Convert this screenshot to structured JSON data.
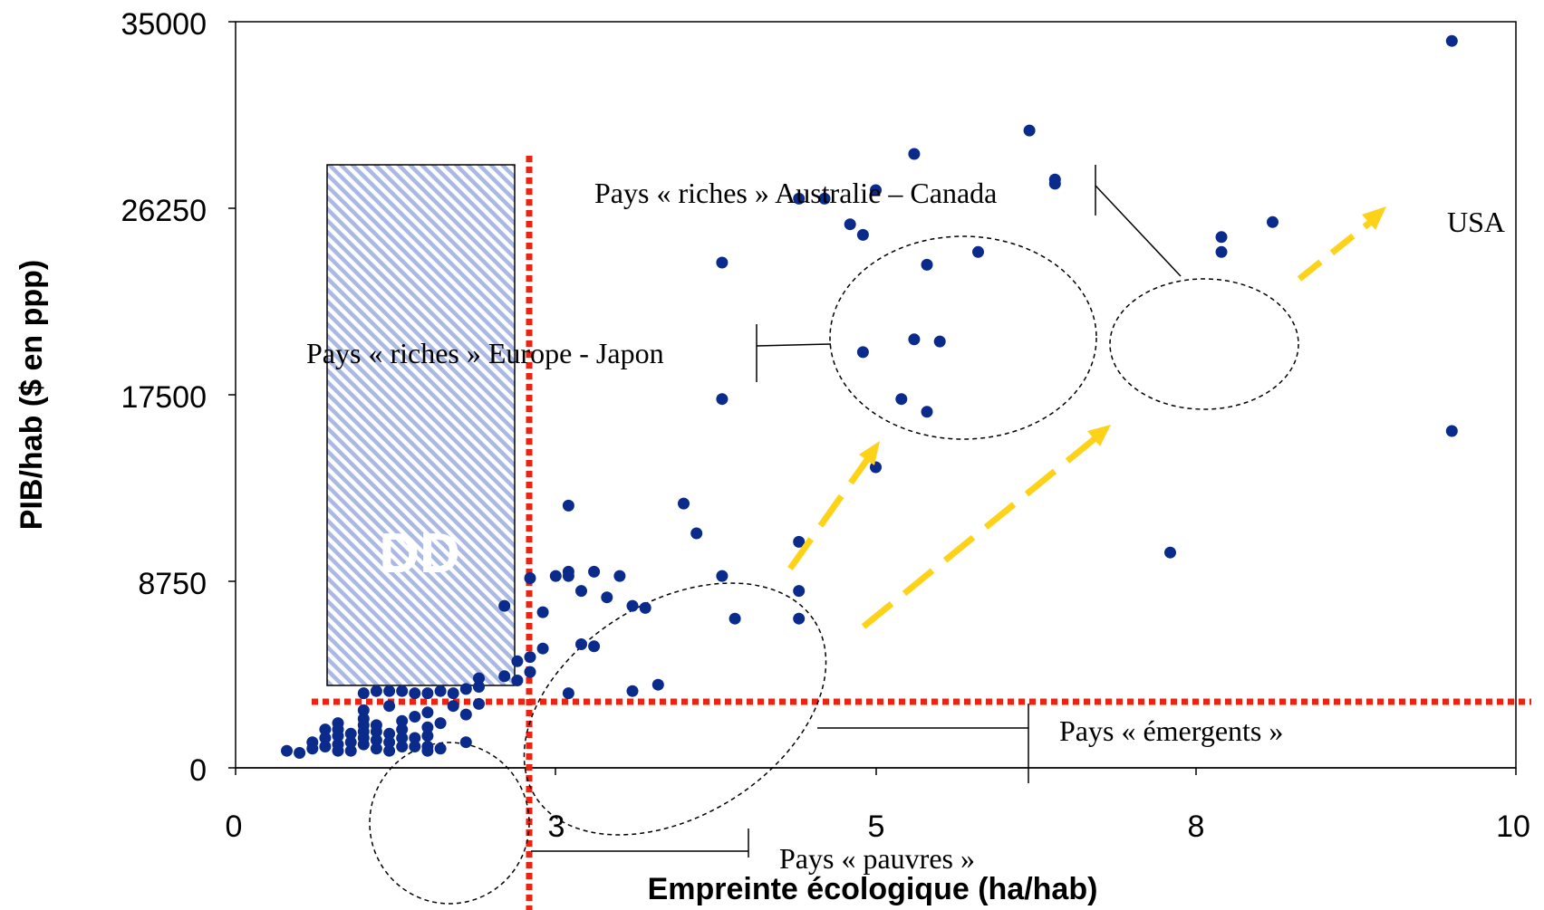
{
  "chart_data": {
    "type": "scatter",
    "title": "",
    "xlabel": "Empreinte écologique (ha/hab)",
    "ylabel": "PIB/hab ($ en ppp)",
    "xlim": [
      0,
      10
    ],
    "ylim": [
      0,
      35000
    ],
    "x_ticks": [
      {
        "value": 0,
        "label": "0"
      },
      {
        "value": 2.5,
        "label": "3"
      },
      {
        "value": 5,
        "label": "5"
      },
      {
        "value": 7.5,
        "label": "8"
      },
      {
        "value": 10,
        "label": "10"
      }
    ],
    "y_ticks": [
      {
        "value": 0,
        "label": "0"
      },
      {
        "value": 8750,
        "label": "8750"
      },
      {
        "value": 17500,
        "label": "17500"
      },
      {
        "value": 26250,
        "label": "26250"
      },
      {
        "value": 35000,
        "label": "35000"
      }
    ],
    "grid": false,
    "legend": "none",
    "marker_color": "#0a2a8c",
    "points": [
      {
        "x": 9.5,
        "y": 34100
      },
      {
        "x": 9.5,
        "y": 15800
      },
      {
        "x": 6.2,
        "y": 29900
      },
      {
        "x": 6.4,
        "y": 27600
      },
      {
        "x": 6.4,
        "y": 27400
      },
      {
        "x": 5.3,
        "y": 28800
      },
      {
        "x": 5.0,
        "y": 27100
      },
      {
        "x": 4.4,
        "y": 26700
      },
      {
        "x": 4.6,
        "y": 26700
      },
      {
        "x": 4.8,
        "y": 25500
      },
      {
        "x": 4.9,
        "y": 25000
      },
      {
        "x": 7.7,
        "y": 24900
      },
      {
        "x": 7.7,
        "y": 24200
      },
      {
        "x": 8.1,
        "y": 25600
      },
      {
        "x": 5.8,
        "y": 24200
      },
      {
        "x": 5.4,
        "y": 23600
      },
      {
        "x": 3.8,
        "y": 23700
      },
      {
        "x": 5.3,
        "y": 20100
      },
      {
        "x": 5.5,
        "y": 20000
      },
      {
        "x": 4.9,
        "y": 19500
      },
      {
        "x": 3.8,
        "y": 17300
      },
      {
        "x": 5.2,
        "y": 17300
      },
      {
        "x": 5.4,
        "y": 16700
      },
      {
        "x": 5.0,
        "y": 14100
      },
      {
        "x": 7.3,
        "y": 10100
      },
      {
        "x": 4.4,
        "y": 10600
      },
      {
        "x": 3.5,
        "y": 12400
      },
      {
        "x": 3.6,
        "y": 11000
      },
      {
        "x": 2.6,
        "y": 12300
      },
      {
        "x": 2.6,
        "y": 9200
      },
      {
        "x": 2.6,
        "y": 9000
      },
      {
        "x": 2.5,
        "y": 9000
      },
      {
        "x": 2.3,
        "y": 8900
      },
      {
        "x": 2.8,
        "y": 9200
      },
      {
        "x": 3.0,
        "y": 9000
      },
      {
        "x": 3.8,
        "y": 9000
      },
      {
        "x": 2.7,
        "y": 8300
      },
      {
        "x": 2.9,
        "y": 8000
      },
      {
        "x": 3.1,
        "y": 7600
      },
      {
        "x": 3.2,
        "y": 7500
      },
      {
        "x": 4.4,
        "y": 8300
      },
      {
        "x": 2.4,
        "y": 7300
      },
      {
        "x": 2.1,
        "y": 7600
      },
      {
        "x": 3.9,
        "y": 7000
      },
      {
        "x": 4.4,
        "y": 7000
      },
      {
        "x": 2.7,
        "y": 5800
      },
      {
        "x": 2.8,
        "y": 5700
      },
      {
        "x": 2.4,
        "y": 5600
      },
      {
        "x": 2.2,
        "y": 5000
      },
      {
        "x": 2.3,
        "y": 5200
      },
      {
        "x": 2.3,
        "y": 4500
      },
      {
        "x": 2.2,
        "y": 4100
      },
      {
        "x": 2.1,
        "y": 4300
      },
      {
        "x": 3.1,
        "y": 3600
      },
      {
        "x": 3.3,
        "y": 3900
      },
      {
        "x": 2.6,
        "y": 3500
      },
      {
        "x": 1.9,
        "y": 4200
      },
      {
        "x": 1.9,
        "y": 3800
      },
      {
        "x": 1.8,
        "y": 3700
      },
      {
        "x": 1.7,
        "y": 3500
      },
      {
        "x": 1.6,
        "y": 3600
      },
      {
        "x": 1.5,
        "y": 3500
      },
      {
        "x": 1.4,
        "y": 3500
      },
      {
        "x": 1.3,
        "y": 3600
      },
      {
        "x": 1.2,
        "y": 3600
      },
      {
        "x": 1.1,
        "y": 3600
      },
      {
        "x": 1.0,
        "y": 3500
      },
      {
        "x": 1.9,
        "y": 3000
      },
      {
        "x": 1.8,
        "y": 2500
      },
      {
        "x": 1.7,
        "y": 2900
      },
      {
        "x": 1.5,
        "y": 2600
      },
      {
        "x": 1.2,
        "y": 2900
      },
      {
        "x": 1.0,
        "y": 2700
      },
      {
        "x": 1.1,
        "y": 2000
      },
      {
        "x": 1.1,
        "y": 1700
      },
      {
        "x": 1.1,
        "y": 1300
      },
      {
        "x": 1.1,
        "y": 900
      },
      {
        "x": 1.0,
        "y": 2300
      },
      {
        "x": 1.0,
        "y": 2000
      },
      {
        "x": 1.0,
        "y": 1700
      },
      {
        "x": 1.0,
        "y": 1400
      },
      {
        "x": 1.0,
        "y": 1100
      },
      {
        "x": 0.9,
        "y": 1600
      },
      {
        "x": 0.9,
        "y": 1200
      },
      {
        "x": 0.9,
        "y": 800
      },
      {
        "x": 0.8,
        "y": 2100
      },
      {
        "x": 0.8,
        "y": 1800
      },
      {
        "x": 0.8,
        "y": 1500
      },
      {
        "x": 0.8,
        "y": 1100
      },
      {
        "x": 0.8,
        "y": 800
      },
      {
        "x": 0.7,
        "y": 1800
      },
      {
        "x": 0.7,
        "y": 1400
      },
      {
        "x": 0.7,
        "y": 1000
      },
      {
        "x": 0.6,
        "y": 1200
      },
      {
        "x": 0.6,
        "y": 900
      },
      {
        "x": 0.5,
        "y": 700
      },
      {
        "x": 0.4,
        "y": 800
      },
      {
        "x": 1.3,
        "y": 2200
      },
      {
        "x": 1.3,
        "y": 1800
      },
      {
        "x": 1.3,
        "y": 1400
      },
      {
        "x": 1.3,
        "y": 1000
      },
      {
        "x": 1.2,
        "y": 1600
      },
      {
        "x": 1.2,
        "y": 1200
      },
      {
        "x": 1.4,
        "y": 2400
      },
      {
        "x": 1.4,
        "y": 1400
      },
      {
        "x": 1.4,
        "y": 1000
      },
      {
        "x": 1.5,
        "y": 1900
      },
      {
        "x": 1.5,
        "y": 1500
      },
      {
        "x": 1.5,
        "y": 1000
      },
      {
        "x": 1.6,
        "y": 2100
      },
      {
        "x": 1.6,
        "y": 900
      },
      {
        "x": 1.8,
        "y": 1200
      },
      {
        "x": 1.5,
        "y": 800
      },
      {
        "x": 1.2,
        "y": 800
      }
    ],
    "thresholds": {
      "x_threshold": 2.3,
      "y_threshold": 3000,
      "color": "#ee2211"
    },
    "highlight_zone": {
      "label": "DD",
      "x_range": [
        0.7,
        2.2
      ],
      "y_range": [
        3700,
        28400
      ],
      "color": "#aab8e4"
    },
    "annotations": [
      {
        "text": "Pays « riches » Australie – Canada"
      },
      {
        "text": "USA"
      },
      {
        "text": "Pays « riches » Europe - Japon"
      },
      {
        "text": "Pays « émergents »"
      },
      {
        "text": "Pays « pauvres »"
      }
    ],
    "arrow_color": "#ffd21a"
  }
}
